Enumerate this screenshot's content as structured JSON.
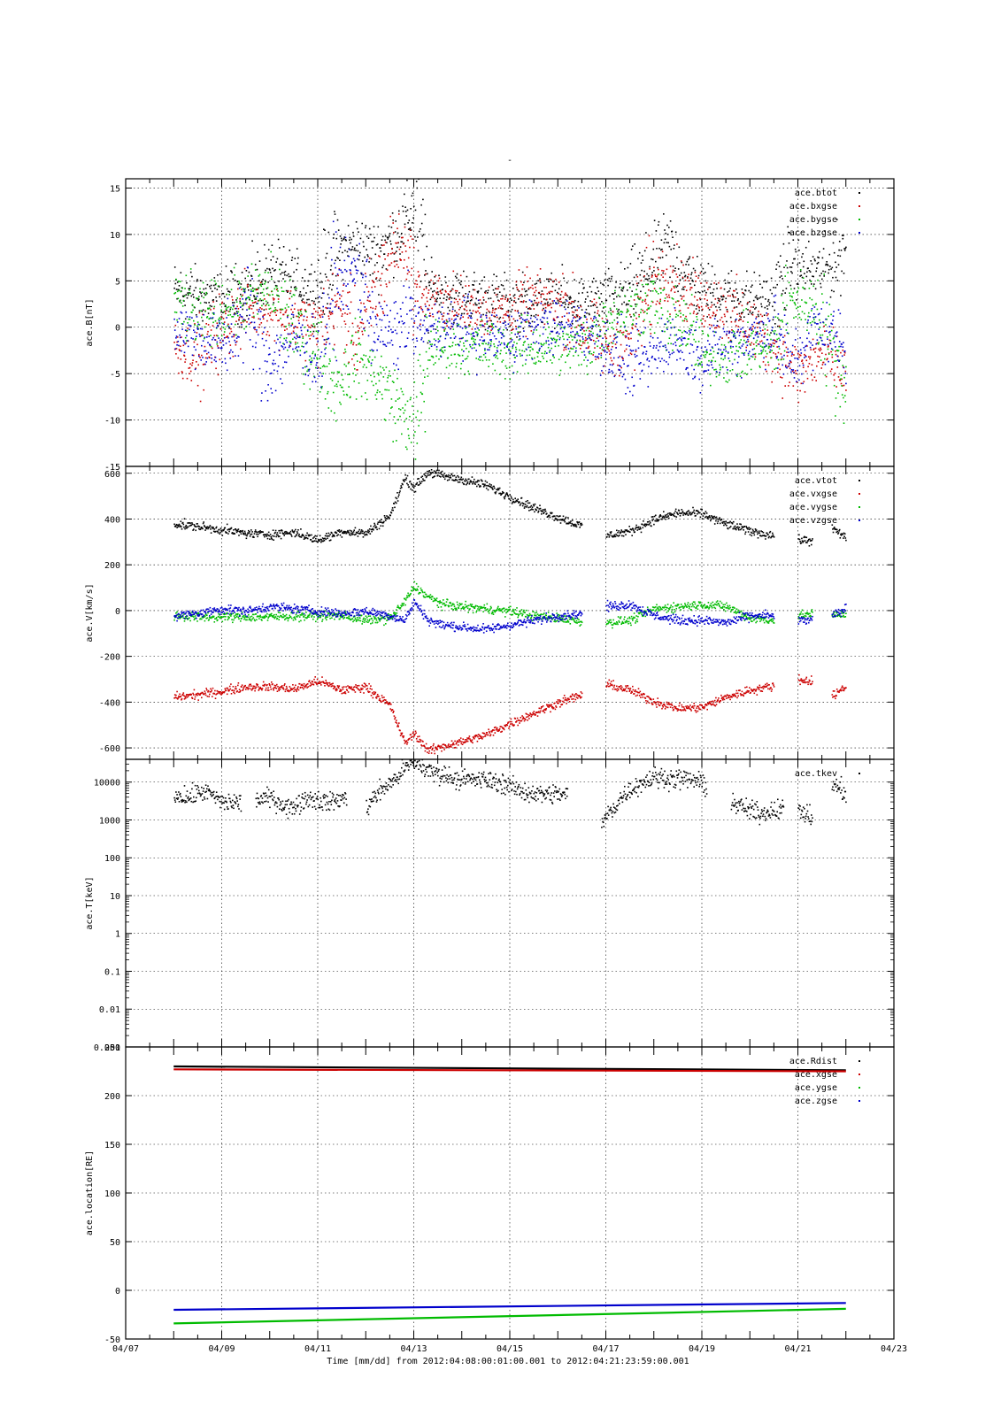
{
  "title": "-",
  "x_axis": {
    "label": "Time [mm/dd]  from 2012:04:08:00:01:00.001  to  2012:04:21:23:59:00.001",
    "range_days": [
      7,
      23
    ],
    "tick_days": [
      7,
      9,
      11,
      13,
      15,
      17,
      19,
      21,
      23
    ],
    "tick_labels": [
      "04/07",
      "04/09",
      "04/11",
      "04/13",
      "04/15",
      "04/17",
      "04/19",
      "04/21",
      "04/23"
    ]
  },
  "colors": {
    "black": "#000000",
    "red": "#cc0000",
    "green": "#00bb00",
    "blue": "#0000cc"
  },
  "chart_data": [
    {
      "type": "scatter",
      "ylabel": "ace.B[nT]",
      "ylim": [
        -15,
        16
      ],
      "yticks": [
        -15,
        -10,
        -5,
        0,
        5,
        10,
        15
      ],
      "ytick_labels": [
        "-15",
        "-10",
        "-5",
        "0",
        "5",
        "10",
        "15"
      ],
      "grid": true,
      "legend_position": "top-right",
      "series": [
        {
          "name": "ace.btot",
          "color": "black",
          "x": [
            8.0,
            8.5,
            9.0,
            9.5,
            10.0,
            10.5,
            11.0,
            11.4,
            11.8,
            12.2,
            12.6,
            12.9,
            13.0,
            13.3,
            13.6,
            14.0,
            14.5,
            15.0,
            15.5,
            16.0,
            16.5,
            17.0,
            17.5,
            18.0,
            18.3,
            18.6,
            19.0,
            19.5,
            20.0,
            20.5,
            20.8,
            21.0,
            21.4,
            21.8,
            22.0
          ],
          "values": [
            4,
            3.5,
            3,
            4,
            6,
            5,
            4,
            8.5,
            9,
            8,
            10,
            12,
            14,
            4,
            3.5,
            3.5,
            3,
            2.5,
            3,
            3,
            2.5,
            3,
            4,
            7,
            9,
            6,
            4,
            3.5,
            3,
            3,
            7,
            6.5,
            6,
            7,
            9.5
          ]
        },
        {
          "name": "ace.bxgse",
          "color": "red",
          "x": [
            8.0,
            8.5,
            9.0,
            9.5,
            10.0,
            10.5,
            11.0,
            11.4,
            11.8,
            12.2,
            12.6,
            12.9,
            13.0,
            13.3,
            13.6,
            14.0,
            14.5,
            15.0,
            15.5,
            16.0,
            16.5,
            17.0,
            17.5,
            18.0,
            18.3,
            18.6,
            19.0,
            19.5,
            20.0,
            20.5,
            20.8,
            21.0,
            21.4,
            21.8,
            22.0
          ],
          "values": [
            -2,
            -3,
            0,
            2,
            2,
            1,
            0,
            3,
            -1,
            4,
            9,
            8,
            4,
            3,
            3,
            2,
            2,
            2,
            3,
            3,
            0,
            -2,
            -1,
            5,
            6,
            4,
            3,
            2,
            0,
            -2,
            -4,
            -5,
            -3,
            -4,
            -5
          ]
        },
        {
          "name": "ace.bygse",
          "color": "green",
          "x": [
            8.0,
            8.5,
            9.0,
            9.5,
            10.0,
            10.5,
            11.0,
            11.4,
            11.8,
            12.2,
            12.6,
            12.9,
            13.0,
            13.3,
            13.6,
            14.0,
            14.5,
            15.0,
            15.5,
            16.0,
            16.5,
            17.0,
            17.5,
            18.0,
            18.3,
            18.6,
            19.0,
            19.5,
            20.0,
            20.5,
            20.8,
            21.0,
            21.4,
            21.8,
            22.0
          ],
          "values": [
            3,
            1,
            2,
            3,
            4,
            0,
            -3,
            -6,
            -3,
            -5,
            -8,
            -10,
            -12,
            -2,
            -2,
            -2,
            -2,
            -2.5,
            -2,
            -2,
            -2,
            1,
            2,
            3,
            0,
            1,
            -3,
            -3,
            -2,
            -2,
            3,
            3,
            2,
            -4,
            -7
          ]
        },
        {
          "name": "ace.bzgse",
          "color": "blue",
          "x": [
            8.0,
            8.5,
            9.0,
            9.5,
            10.0,
            10.5,
            11.0,
            11.4,
            11.8,
            12.2,
            12.6,
            12.9,
            13.0,
            13.3,
            13.6,
            14.0,
            14.5,
            15.0,
            15.5,
            16.0,
            16.5,
            17.0,
            17.5,
            18.0,
            18.3,
            18.6,
            19.0,
            19.5,
            20.0,
            20.5,
            20.8,
            21.0,
            21.4,
            21.8,
            22.0
          ],
          "values": [
            0,
            -1,
            -2,
            2,
            -4,
            -1,
            -3,
            5,
            6,
            0,
            -1,
            2,
            0,
            0,
            0,
            0,
            -1,
            -1,
            0,
            0,
            0,
            -2,
            -4,
            -3,
            -1,
            -2,
            -3,
            -2,
            -1,
            0,
            -4,
            -3,
            0,
            -1,
            -3
          ]
        }
      ]
    },
    {
      "type": "scatter",
      "ylabel": "ace.V[km/s]",
      "ylim": [
        -650,
        630
      ],
      "yticks": [
        -600,
        -400,
        -200,
        0,
        200,
        400,
        600
      ],
      "ytick_labels": [
        "-600",
        "-400",
        "-200",
        "0",
        "200",
        "400",
        "600"
      ],
      "grid": true,
      "legend_position": "top-right",
      "series": [
        {
          "name": "ace.vtot",
          "color": "black",
          "x": [
            8.0,
            8.5,
            9.0,
            9.5,
            10.0,
            10.5,
            11.0,
            11.5,
            12.0,
            12.5,
            12.8,
            13.0,
            13.3,
            13.6,
            14.0,
            14.5,
            15.0,
            15.5,
            16.0,
            16.5,
            null,
            17.0,
            17.5,
            18.0,
            18.5,
            19.0,
            19.5,
            20.0,
            20.5,
            null,
            21.0,
            21.3,
            null,
            21.7,
            22.0
          ],
          "values": [
            380,
            370,
            355,
            340,
            335,
            345,
            310,
            350,
            340,
            420,
            580,
            540,
            610,
            590,
            575,
            550,
            500,
            450,
            410,
            370,
            null,
            330,
            350,
            400,
            430,
            425,
            380,
            350,
            330,
            null,
            310,
            310,
            null,
            360,
            320
          ]
        },
        {
          "name": "ace.vxgse",
          "color": "red",
          "x": [
            8.0,
            8.5,
            9.0,
            9.5,
            10.0,
            10.5,
            11.0,
            11.5,
            12.0,
            12.5,
            12.8,
            13.0,
            13.3,
            13.6,
            14.0,
            14.5,
            15.0,
            15.5,
            16.0,
            16.5,
            null,
            17.0,
            17.5,
            18.0,
            18.5,
            19.0,
            19.5,
            20.0,
            20.5,
            null,
            21.0,
            21.3,
            null,
            21.7,
            22.0
          ],
          "values": [
            -375,
            -365,
            -350,
            -330,
            -330,
            -340,
            -305,
            -345,
            -330,
            -415,
            -575,
            -535,
            -610,
            -590,
            -570,
            -540,
            -490,
            -445,
            -400,
            -365,
            null,
            -320,
            -345,
            -395,
            -425,
            -420,
            -375,
            -345,
            -325,
            null,
            -300,
            -305,
            null,
            -370,
            -330
          ]
        },
        {
          "name": "ace.vygse",
          "color": "green",
          "x": [
            8.0,
            8.5,
            9.0,
            9.5,
            10.0,
            10.5,
            11.0,
            11.5,
            12.0,
            12.5,
            12.8,
            13.0,
            13.3,
            13.6,
            14.0,
            14.5,
            15.0,
            15.5,
            16.0,
            16.5,
            null,
            17.0,
            17.5,
            18.0,
            18.5,
            19.0,
            19.5,
            20.0,
            20.5,
            null,
            21.0,
            21.3,
            null,
            21.7,
            22.0
          ],
          "values": [
            -20,
            -25,
            -25,
            -25,
            -25,
            -20,
            -20,
            -20,
            -40,
            -30,
            40,
            110,
            60,
            30,
            20,
            10,
            0,
            -20,
            -30,
            -45,
            null,
            -50,
            -40,
            10,
            20,
            30,
            20,
            -30,
            -40,
            null,
            -20,
            -10,
            null,
            -20,
            -10
          ]
        },
        {
          "name": "ace.vzgse",
          "color": "blue",
          "x": [
            8.0,
            8.5,
            9.0,
            9.5,
            10.0,
            10.5,
            11.0,
            11.5,
            12.0,
            12.5,
            12.8,
            13.0,
            13.3,
            13.6,
            14.0,
            14.5,
            15.0,
            15.5,
            16.0,
            16.5,
            null,
            17.0,
            17.5,
            18.0,
            18.5,
            19.0,
            19.5,
            20.0,
            20.5,
            null,
            21.0,
            21.3,
            null,
            21.7,
            22.0
          ],
          "values": [
            -20,
            -10,
            10,
            0,
            20,
            10,
            0,
            -10,
            0,
            -20,
            -40,
            40,
            -40,
            -60,
            -70,
            -80,
            -60,
            -40,
            -20,
            -10,
            null,
            20,
            30,
            -20,
            -40,
            -40,
            -50,
            -20,
            -20,
            null,
            -40,
            -40,
            null,
            -20,
            10
          ]
        }
      ]
    },
    {
      "type": "scatter",
      "ylabel": "ace.T[keV]",
      "yscale": "log",
      "ylim": [
        0.001,
        40000
      ],
      "yticks": [
        0.001,
        0.01,
        0.1,
        1,
        10,
        100,
        1000,
        10000
      ],
      "ytick_labels": [
        "0.001",
        "0.01",
        "0.1",
        "1",
        "10",
        "100",
        "1000",
        "10000"
      ],
      "grid": true,
      "legend_position": "top-right",
      "series": [
        {
          "name": "ace.tkev",
          "color": "black",
          "x": [
            8.0,
            8.3,
            8.6,
            9.0,
            9.4,
            null,
            9.7,
            10.0,
            10.4,
            10.8,
            11.2,
            11.6,
            null,
            12.0,
            12.3,
            12.6,
            13.0,
            13.3,
            13.7,
            14.0,
            14.4,
            14.8,
            15.2,
            15.6,
            16.0,
            16.2,
            null,
            16.9,
            17.2,
            17.6,
            18.0,
            18.4,
            18.8,
            19.1,
            null,
            19.6,
            19.9,
            20.2,
            20.5,
            20.7,
            null,
            21.0,
            21.3,
            null,
            21.7,
            22.0
          ],
          "values": [
            5000,
            4000,
            6000,
            3000,
            3000,
            null,
            3500,
            4000,
            2000,
            4000,
            3000,
            4000,
            null,
            2000,
            6000,
            12000,
            35000,
            20000,
            15000,
            12000,
            12000,
            10000,
            6000,
            5000,
            5000,
            5000,
            null,
            700,
            2500,
            8000,
            14000,
            13000,
            12000,
            8000,
            null,
            3000,
            2000,
            1500,
            2000,
            2000,
            null,
            2000,
            1000,
            null,
            9000,
            5000
          ]
        }
      ]
    },
    {
      "type": "line",
      "ylabel": "ace.location[RE]",
      "ylim": [
        -50,
        250
      ],
      "yticks": [
        -50,
        0,
        50,
        100,
        150,
        200,
        250
      ],
      "ytick_labels": [
        "-50",
        "0",
        "50",
        "100",
        "150",
        "200",
        "250"
      ],
      "grid": true,
      "legend_position": "top-right",
      "series": [
        {
          "name": "ace.Rdist",
          "color": "black",
          "x": [
            8.0,
            22.0
          ],
          "values": [
            230,
            226
          ]
        },
        {
          "name": "ace.xgse",
          "color": "red",
          "x": [
            8.0,
            22.0
          ],
          "values": [
            227,
            225
          ]
        },
        {
          "name": "ace.ygse",
          "color": "green",
          "x": [
            8.0,
            22.0
          ],
          "values": [
            -34,
            -19
          ]
        },
        {
          "name": "ace.zgse",
          "color": "blue",
          "x": [
            8.0,
            22.0
          ],
          "values": [
            -20,
            -13
          ]
        }
      ]
    }
  ]
}
